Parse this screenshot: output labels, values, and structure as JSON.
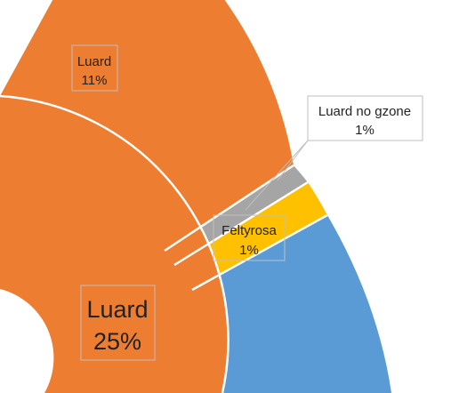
{
  "chart_data": {
    "type": "doughnut",
    "rings": [
      {
        "ring": "outer",
        "slices": [
          {
            "name": "Luard",
            "label": "Luard",
            "value_label": "11%",
            "value": 11,
            "color": "#ED7D31"
          },
          {
            "name": "Luard no gzone",
            "label": "Luard no gzone",
            "value_label": "1%",
            "value": 1,
            "color": "#A5A5A5"
          },
          {
            "name": "Feltyrosa",
            "label": "Feltyrosa",
            "value_label": "1%",
            "value": 1,
            "color": "#FFC000"
          },
          {
            "name": "",
            "label": "",
            "value_label": "",
            "value": null,
            "color": "#5B9BD5"
          }
        ]
      },
      {
        "ring": "inner",
        "slices": [
          {
            "name": "Luard",
            "label": "Luard",
            "value_label": "25%",
            "value": 25,
            "color": "#ED7D31"
          }
        ]
      }
    ],
    "separator_color": "#ffffff",
    "leader_line_color": "#bfbfbf",
    "label_box_border": "#bfbfbf"
  }
}
